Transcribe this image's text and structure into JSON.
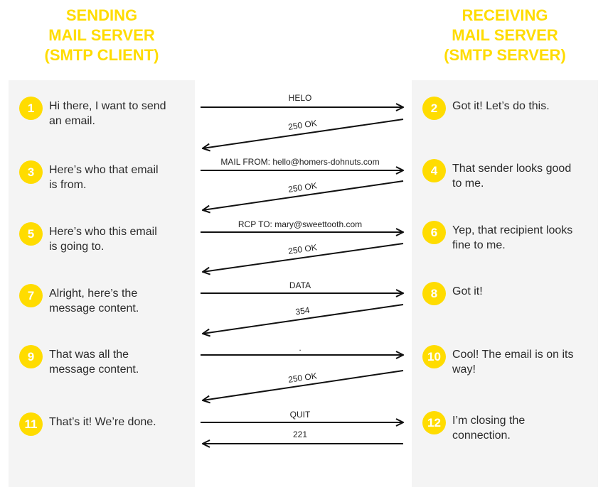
{
  "sender": {
    "title_lines": [
      "SENDING",
      "MAIL SERVER",
      "(SMTP CLIENT)"
    ],
    "steps": [
      {
        "num": "1",
        "text_lines": [
          "Hi there, I want to send",
          "an email."
        ]
      },
      {
        "num": "3",
        "text_lines": [
          "Here’s who that email",
          "is from."
        ]
      },
      {
        "num": "5",
        "text_lines": [
          "Here’s who this email",
          "is going to."
        ]
      },
      {
        "num": "7",
        "text_lines": [
          "Alright, here’s the",
          "message content."
        ]
      },
      {
        "num": "9",
        "text_lines": [
          "That was all the",
          "message content."
        ]
      },
      {
        "num": "11",
        "text_lines": [
          "That’s it! We’re done."
        ]
      }
    ]
  },
  "receiver": {
    "title_lines": [
      "RECEIVING",
      "MAIL SERVER",
      "(SMTP SERVER)"
    ],
    "steps": [
      {
        "num": "2",
        "text_lines": [
          "Got it! Let’s do this."
        ]
      },
      {
        "num": "4",
        "text_lines": [
          "That sender looks good",
          "to me."
        ]
      },
      {
        "num": "6",
        "text_lines": [
          "Yep, that recipient looks",
          "fine to me."
        ]
      },
      {
        "num": "8",
        "text_lines": [
          "Got it!"
        ]
      },
      {
        "num": "10",
        "text_lines": [
          "Cool! The email is on its",
          "way!"
        ]
      },
      {
        "num": "12",
        "text_lines": [
          "I’m closing the",
          "connection."
        ]
      }
    ]
  },
  "messages": {
    "commands": [
      "HELO",
      "MAIL FROM: hello@homers-dohnuts.com",
      "RCP TO: mary@sweettooth.com",
      "DATA",
      ".",
      "QUIT"
    ],
    "replies": [
      "250 OK",
      "250 OK",
      "250 OK",
      "354",
      "250 OK",
      "221"
    ]
  },
  "colors": {
    "accent": "#ffdc00",
    "panel": "#f4f4f4",
    "text": "#2b2b2b",
    "arrow": "#111111"
  }
}
